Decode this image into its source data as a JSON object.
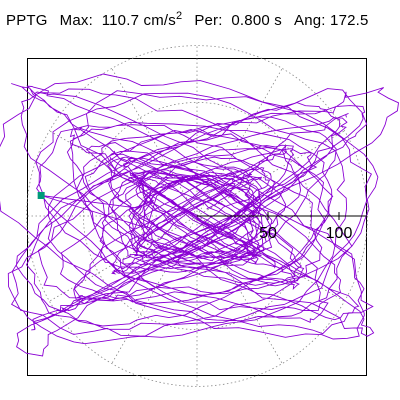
{
  "header": {
    "station": "PPTG",
    "max_label": "Max:",
    "max_value": "110.7",
    "max_unit": "cm/s",
    "max_unit_power": "2",
    "period_label": "Per:",
    "period_value": "0.800 s",
    "angle_label": "Ang:",
    "angle_value": "172.5"
  },
  "chart_data": {
    "type": "scatter",
    "title": "",
    "xlabel": "",
    "ylabel": "",
    "radial_ticks": [
      50,
      100
    ],
    "radial_tick_labels": [
      "50",
      "100"
    ],
    "ring_values": [
      40,
      80,
      120
    ],
    "spokes_deg": [
      0,
      30,
      60,
      90,
      120,
      150,
      180,
      210,
      240,
      270,
      300,
      330
    ],
    "grid": true,
    "colors": {
      "trace": "#8a00d4",
      "marker": "#00997a",
      "grid": "#888888",
      "axis": "#000000"
    },
    "max_marker": {
      "amplitude": 110.7,
      "angle_deg": 172.5
    },
    "trace_style": "random orbital particle motion"
  }
}
